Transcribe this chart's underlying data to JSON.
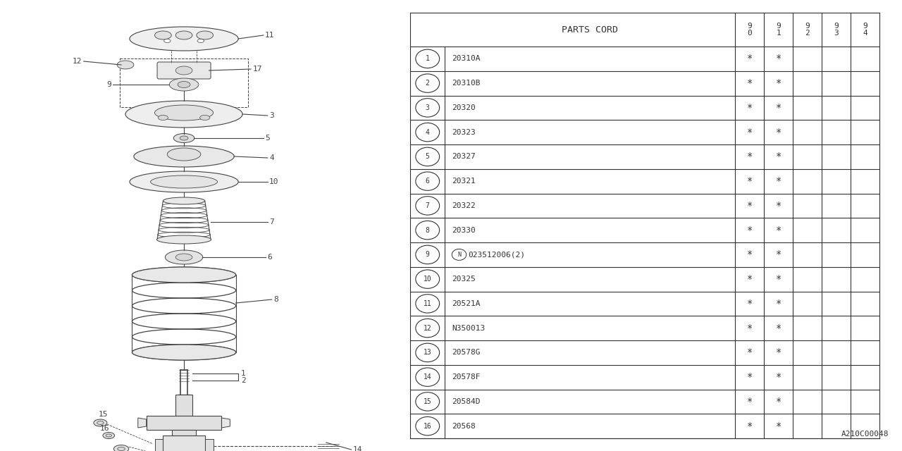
{
  "bg_color": "#ffffff",
  "footer_code": "A210C00048",
  "col_header": "PARTS CORD",
  "year_cols": [
    "9\n0",
    "9\n1",
    "9\n2",
    "9\n3",
    "9\n4"
  ],
  "rows": [
    {
      "num": "1",
      "code": "20310A",
      "n_prefix": false,
      "marks": [
        true,
        true,
        false,
        false,
        false
      ]
    },
    {
      "num": "2",
      "code": "20310B",
      "n_prefix": false,
      "marks": [
        true,
        true,
        false,
        false,
        false
      ]
    },
    {
      "num": "3",
      "code": "20320",
      "n_prefix": false,
      "marks": [
        true,
        true,
        false,
        false,
        false
      ]
    },
    {
      "num": "4",
      "code": "20323",
      "n_prefix": false,
      "marks": [
        true,
        true,
        false,
        false,
        false
      ]
    },
    {
      "num": "5",
      "code": "20327",
      "n_prefix": false,
      "marks": [
        true,
        true,
        false,
        false,
        false
      ]
    },
    {
      "num": "6",
      "code": "20321",
      "n_prefix": false,
      "marks": [
        true,
        true,
        false,
        false,
        false
      ]
    },
    {
      "num": "7",
      "code": "20322",
      "n_prefix": false,
      "marks": [
        true,
        true,
        false,
        false,
        false
      ]
    },
    {
      "num": "8",
      "code": "20330",
      "n_prefix": false,
      "marks": [
        true,
        true,
        false,
        false,
        false
      ]
    },
    {
      "num": "9",
      "code": "023512006(2)",
      "n_prefix": true,
      "marks": [
        true,
        true,
        false,
        false,
        false
      ]
    },
    {
      "num": "10",
      "code": "20325",
      "n_prefix": false,
      "marks": [
        true,
        true,
        false,
        false,
        false
      ]
    },
    {
      "num": "11",
      "code": "20521A",
      "n_prefix": false,
      "marks": [
        true,
        true,
        false,
        false,
        false
      ]
    },
    {
      "num": "12",
      "code": "N350013",
      "n_prefix": false,
      "marks": [
        true,
        true,
        false,
        false,
        false
      ]
    },
    {
      "num": "13",
      "code": "20578G",
      "n_prefix": false,
      "marks": [
        true,
        true,
        false,
        false,
        false
      ]
    },
    {
      "num": "14",
      "code": "20578F",
      "n_prefix": false,
      "marks": [
        true,
        true,
        false,
        false,
        false
      ]
    },
    {
      "num": "15",
      "code": "20584D",
      "n_prefix": false,
      "marks": [
        true,
        true,
        false,
        false,
        false
      ]
    },
    {
      "num": "16",
      "code": "20568",
      "n_prefix": false,
      "marks": [
        true,
        true,
        false,
        false,
        false
      ]
    }
  ]
}
